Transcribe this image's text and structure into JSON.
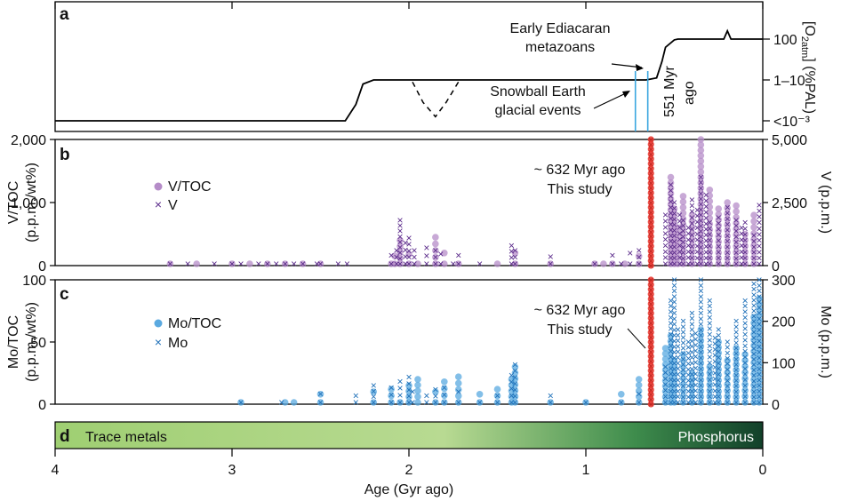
{
  "panel_letters": [
    "a",
    "b",
    "c",
    "d"
  ],
  "x_axis": {
    "label": "Age (Gyr ago)",
    "ticks": [
      4,
      3,
      2,
      1,
      0
    ],
    "range": [
      4,
      0
    ]
  },
  "chart_data": [
    {
      "panel": "a",
      "type": "line",
      "title": "",
      "ylabel_right": "[O2]atm (%PAL)",
      "y_ticks_right": [
        "100",
        "1–10",
        "<10⁻³"
      ],
      "scale": "relative oxygen level (0 = <10⁻³, 1 = 1–10, 2 = 100)",
      "series": [
        {
          "name": "",
          "style": "solid",
          "x": [
            4.0,
            2.36,
            2.3,
            2.26,
            2.2,
            0.66,
            0.6,
            0.57,
            0.55,
            0.5,
            0.48,
            0.22,
            0.2,
            0.18,
            0.0
          ],
          "y": [
            0.0,
            0.0,
            0.4,
            0.9,
            1.0,
            1.0,
            1.05,
            1.45,
            1.8,
            1.98,
            2.0,
            2.0,
            2.2,
            2.0,
            2.0
          ]
        },
        {
          "name": "",
          "style": "dashed",
          "x": [
            1.98,
            1.92,
            1.85,
            1.79,
            1.72
          ],
          "y": [
            0.95,
            0.45,
            0.1,
            0.45,
            0.95
          ]
        }
      ],
      "glacial_events": [
        0.72,
        0.65
      ],
      "annotations": {
        "ediacaran": "Early Ediacaran\nmetazoans",
        "snowball": "Snowball Earth\nglacial events",
        "age_551": "551 Myr\nago"
      }
    },
    {
      "panel": "b",
      "type": "scatter",
      "ylabel_left": "V/TOC\n(p.p.m./wt%)",
      "ylabel_right": "V (p.p.m.)",
      "ylim_left": [
        0,
        2000
      ],
      "ylim_right": [
        0,
        5000
      ],
      "y_ticks_left": [
        "0",
        "1,000",
        "2,000"
      ],
      "y_ticks_right": [
        "5,000",
        "2,500",
        "0"
      ],
      "legend": {
        "placement": "upper-left",
        "entries": [
          "V/TOC",
          "V"
        ]
      },
      "annotation": "~ 632 Myr ago\nThis study",
      "series": [
        {
          "name": "V/TOC",
          "marker": "circle",
          "color": "#b58cc8",
          "x": [
            3.35,
            3.2,
            3.0,
            2.9,
            2.8,
            2.7,
            2.6,
            2.5,
            2.1,
            2.08,
            2.05,
            2.0,
            1.95,
            1.85,
            1.8,
            1.72,
            1.5,
            1.4,
            1.2,
            0.95,
            0.9,
            0.85,
            0.78,
            0.7,
            0.52,
            0.5,
            0.48,
            0.45,
            0.4,
            0.35,
            0.3,
            0.25,
            0.2,
            0.15,
            0.1,
            0.05
          ],
          "y": [
            30,
            20,
            40,
            50,
            30,
            40,
            50,
            40,
            100,
            150,
            400,
            180,
            80,
            450,
            200,
            90,
            100,
            200,
            100,
            50,
            80,
            60,
            120,
            150,
            1400,
            900,
            600,
            1100,
            800,
            2000,
            1200,
            900,
            1000,
            950,
            500,
            800
          ]
        },
        {
          "name": "V",
          "marker": "x",
          "color": "#5a2a8a",
          "x": [
            3.35,
            3.25,
            3.1,
            3.0,
            2.95,
            2.85,
            2.8,
            2.75,
            2.7,
            2.65,
            2.6,
            2.52,
            2.5,
            2.4,
            2.35,
            2.1,
            2.07,
            2.05,
            2.02,
            2.0,
            1.97,
            1.9,
            1.85,
            1.82,
            1.75,
            1.72,
            1.6,
            1.42,
            1.4,
            1.2,
            0.95,
            0.85,
            0.8,
            0.75,
            0.7,
            0.55,
            0.52,
            0.5,
            0.47,
            0.45,
            0.42,
            0.4,
            0.37,
            0.35,
            0.32,
            0.3,
            0.25,
            0.2,
            0.15,
            0.12,
            0.1,
            0.05,
            0.02
          ],
          "y": [
            200,
            150,
            250,
            300,
            200,
            250,
            200,
            250,
            300,
            200,
            250,
            200,
            300,
            150,
            200,
            400,
            600,
            1800,
            900,
            1100,
            600,
            700,
            600,
            450,
            300,
            400,
            250,
            800,
            600,
            350,
            200,
            400,
            300,
            500,
            600,
            2000,
            3200,
            2500,
            2000,
            1800,
            1500,
            2600,
            2200,
            3500,
            2800,
            1700,
            1900,
            2300,
            1800,
            1500,
            1700,
            1200,
            2400
          ]
        },
        {
          "name": "This study",
          "marker": "circle-x",
          "color": "#e8332a",
          "x": [
            0.632
          ],
          "y_range": [
            0,
            2000
          ]
        }
      ]
    },
    {
      "panel": "c",
      "type": "scatter",
      "ylabel_left": "Mo/TOC\n(p.p.m./wt%)",
      "ylabel_right": "Mo (p.p.m.)",
      "ylim_left": [
        0,
        100
      ],
      "ylim_right": [
        0,
        300
      ],
      "y_ticks_left": [
        "0",
        "50",
        "100"
      ],
      "y_ticks_right": [
        "300",
        "200",
        "100",
        "0"
      ],
      "legend": {
        "placement": "upper-left",
        "entries": [
          "Mo/TOC",
          "Mo"
        ]
      },
      "annotation": "~ 632 Myr ago\nThis study",
      "series": [
        {
          "name": "Mo/TOC",
          "marker": "circle",
          "color": "#5aa9e0",
          "x": [
            2.95,
            2.7,
            2.65,
            2.5,
            2.2,
            2.1,
            2.05,
            2.0,
            1.95,
            1.85,
            1.8,
            1.72,
            1.6,
            1.5,
            1.42,
            1.4,
            1.2,
            1.0,
            0.8,
            0.7,
            0.55,
            0.52,
            0.5,
            0.45,
            0.4,
            0.35,
            0.3,
            0.25,
            0.2,
            0.15,
            0.1,
            0.05,
            0.02
          ],
          "y": [
            2,
            5,
            3,
            8,
            10,
            12,
            6,
            15,
            20,
            10,
            18,
            22,
            8,
            12,
            20,
            30,
            5,
            3,
            8,
            20,
            45,
            55,
            35,
            40,
            25,
            60,
            30,
            50,
            35,
            45,
            40,
            70,
            85
          ]
        },
        {
          "name": "Mo",
          "marker": "x",
          "color": "#1d6fb8",
          "x": [
            2.95,
            2.72,
            2.5,
            2.3,
            2.2,
            2.1,
            2.05,
            2.0,
            1.98,
            1.9,
            1.85,
            1.8,
            1.72,
            1.6,
            1.5,
            1.42,
            1.4,
            1.2,
            1.0,
            0.8,
            0.7,
            0.55,
            0.52,
            0.5,
            0.48,
            0.45,
            0.42,
            0.4,
            0.38,
            0.35,
            0.3,
            0.27,
            0.25,
            0.2,
            0.15,
            0.1,
            0.05,
            0.02
          ],
          "y": [
            10,
            15,
            25,
            20,
            45,
            40,
            55,
            65,
            30,
            20,
            35,
            40,
            30,
            10,
            20,
            70,
            95,
            20,
            10,
            15,
            25,
            90,
            250,
            300,
            180,
            200,
            150,
            220,
            170,
            300,
            250,
            160,
            180,
            150,
            200,
            250,
            290,
            300
          ]
        },
        {
          "name": "This study",
          "marker": "circle-x",
          "color": "#e8332a",
          "x": [
            0.632
          ],
          "y_range": [
            0,
            100
          ]
        }
      ]
    },
    {
      "panel": "d",
      "type": "bar",
      "left_label": "Trace metals",
      "right_label": "Phosphorus",
      "colors": [
        "#a8d27f",
        "#1a5c3a"
      ]
    }
  ]
}
